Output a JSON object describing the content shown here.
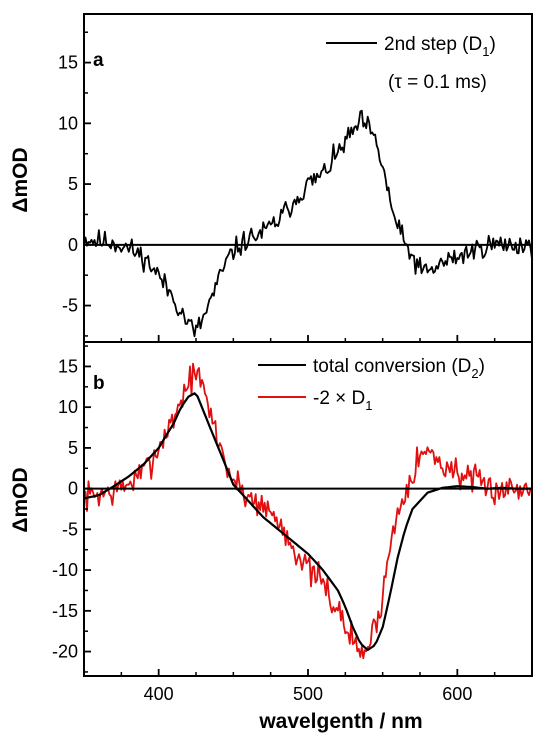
{
  "colors": {
    "black": "#000000",
    "red": "#e01010",
    "axis": "#000000"
  },
  "chart_data": [
    {
      "panel": "a",
      "type": "line",
      "xlim": [
        350,
        650
      ],
      "ylim": [
        -8,
        19
      ],
      "yticks": [
        -5,
        0,
        5,
        10,
        15
      ],
      "tick_labels_y": [
        "-5",
        "0",
        "5",
        "10",
        "15"
      ],
      "ylabel": "ΔmOD",
      "grid": false,
      "zero_line": true,
      "legend": {
        "placement": "top-right",
        "entries": [
          {
            "label_main": "2nd step (D",
            "label_sub": "1",
            "label_end": ")",
            "color": "#000000"
          }
        ],
        "annotation": "(τ  = 0.1 ms)"
      },
      "series": [
        {
          "name": "2nd step (D1)",
          "color": "#000000",
          "noise": 0.75,
          "seed": 11,
          "x": [
            350,
            360,
            370,
            380,
            390,
            400,
            405,
            410,
            415,
            420,
            425,
            430,
            435,
            440,
            445,
            450,
            460,
            470,
            480,
            490,
            500,
            510,
            520,
            525,
            530,
            535,
            540,
            545,
            550,
            555,
            560,
            565,
            570,
            575,
            580,
            590,
            600,
            610,
            620,
            630,
            640,
            650
          ],
          "y": [
            0.5,
            0.3,
            0.2,
            -0.3,
            -1.0,
            -2.5,
            -3.5,
            -4.3,
            -5.5,
            -6.5,
            -7.2,
            -6.0,
            -4.5,
            -3.0,
            -1.5,
            -0.5,
            0.5,
            1.0,
            2.0,
            3.5,
            5.0,
            5.8,
            7.5,
            8.5,
            9.2,
            10.2,
            9.7,
            8.5,
            6.5,
            3.5,
            1.5,
            0.0,
            -1.0,
            -2.0,
            -2.3,
            -1.5,
            -1.0,
            -0.5,
            0.0,
            0.0,
            0.0,
            0.0
          ]
        }
      ]
    },
    {
      "panel": "b",
      "type": "line",
      "xlim": [
        350,
        650
      ],
      "ylim": [
        -23,
        18
      ],
      "xticks": [
        400,
        500,
        600
      ],
      "tick_labels_x": [
        "400",
        "500",
        "600"
      ],
      "yticks": [
        -20,
        -15,
        -10,
        -5,
        0,
        5,
        10,
        15
      ],
      "tick_labels_y": [
        "-20",
        "-15",
        "-10",
        "-5",
        "0",
        "5",
        "10",
        "15"
      ],
      "xlabel": "wavelgenth / nm",
      "ylabel": "ΔmOD",
      "grid": false,
      "zero_line": true,
      "legend": {
        "placement": "top-right",
        "entries": [
          {
            "label_main": "total conversion (D",
            "label_sub": "2",
            "label_end": ")",
            "color": "#000000"
          },
          {
            "label_main": "-2 × D",
            "label_sub": "1",
            "label_end": "",
            "color": "#e01010"
          }
        ]
      },
      "series": [
        {
          "name": "-2 × D1",
          "color": "#e01010",
          "noise": 1.5,
          "seed": 7,
          "x": [
            350,
            360,
            370,
            380,
            390,
            400,
            405,
            410,
            415,
            420,
            425,
            430,
            435,
            440,
            445,
            450,
            460,
            470,
            480,
            490,
            500,
            510,
            520,
            525,
            530,
            535,
            540,
            545,
            550,
            555,
            560,
            565,
            570,
            575,
            580,
            590,
            600,
            610,
            620,
            630,
            640,
            650
          ],
          "y": [
            -1.0,
            -0.6,
            -0.4,
            0.6,
            2.0,
            5.0,
            7.0,
            8.6,
            11.0,
            13.0,
            14.4,
            12.0,
            9.0,
            6.0,
            3.0,
            1.0,
            -1.0,
            -2.0,
            -4.0,
            -7.0,
            -10.0,
            -11.6,
            -15.0,
            -17.0,
            -18.4,
            -20.4,
            -19.4,
            -17.0,
            -13.0,
            -7.0,
            -3.0,
            0.0,
            2.0,
            4.0,
            4.6,
            3.0,
            2.0,
            1.0,
            0.0,
            0.0,
            0.0,
            0.0
          ]
        },
        {
          "name": "total conversion (D2)",
          "color": "#000000",
          "noise": 0,
          "seed": 3,
          "x": [
            350,
            360,
            370,
            380,
            390,
            400,
            410,
            415,
            420,
            425,
            430,
            440,
            450,
            460,
            470,
            480,
            490,
            500,
            510,
            520,
            525,
            530,
            535,
            540,
            545,
            550,
            555,
            560,
            565,
            570,
            580,
            590,
            600,
            610,
            620,
            630,
            640,
            650
          ],
          "y": [
            -1.2,
            -0.8,
            0.3,
            1.5,
            3.0,
            5.0,
            8.0,
            10.0,
            11.3,
            11.8,
            9.5,
            5.0,
            0.5,
            -1.5,
            -3.5,
            -5.0,
            -6.5,
            -8.0,
            -10.0,
            -12.5,
            -14.5,
            -17.0,
            -19.0,
            -19.8,
            -19.2,
            -17.0,
            -13.0,
            -8.5,
            -5.0,
            -2.5,
            -0.5,
            0.1,
            0.3,
            0.2,
            0.0,
            0.1,
            0.0,
            0.0
          ]
        }
      ]
    }
  ]
}
